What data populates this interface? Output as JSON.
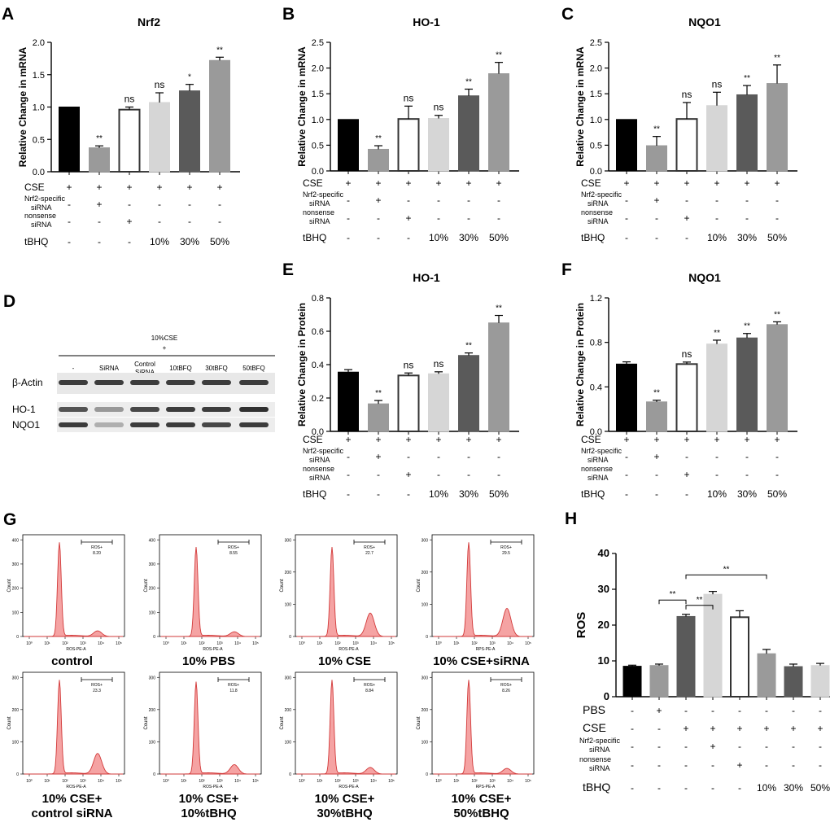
{
  "colors": {
    "black": "#000000",
    "gray_dark": "#5a5a5a",
    "gray_mid": "#9a9a9a",
    "gray_light": "#d6d6d6",
    "white": "#ffffff",
    "flow_fill": "#f5a3a3",
    "flow_line": "#d23a3a"
  },
  "chart_data": [
    {
      "id": "A",
      "panel_label": "A",
      "type": "bar",
      "title": "Nrf2",
      "ylabel": "Relative Change in mRNA",
      "ylim": [
        0,
        2.0
      ],
      "yticks": [
        "0.0",
        "0.5",
        "1.0",
        "1.5",
        "2.0"
      ],
      "ytick_values": [
        0,
        0.5,
        1.0,
        1.5,
        2.0
      ],
      "values": [
        1.0,
        0.37,
        0.96,
        1.07,
        1.25,
        1.72
      ],
      "errors": [
        0,
        0.03,
        0.04,
        0.15,
        0.1,
        0.05
      ],
      "fills": [
        "black",
        "gray_mid",
        "white",
        "gray_light",
        "gray_dark",
        "gray_mid"
      ],
      "significance": [
        "",
        "**",
        "ns",
        "ns",
        "*",
        "**"
      ],
      "treatments": [
        {
          "label": "CSE",
          "values": [
            "+",
            "+",
            "+",
            "+",
            "+",
            "+"
          ]
        },
        {
          "label": "Nrf2-specific",
          "label2": "siRNA",
          "values": [
            "-",
            "+",
            "-",
            "-",
            "-",
            "-"
          ]
        },
        {
          "label": "nonsense",
          "label2": "siRNA",
          "values": [
            "-",
            "-",
            "+",
            "-",
            "-",
            "-"
          ]
        },
        {
          "label": "tBHQ",
          "values": [
            "-",
            "-",
            "-",
            "10%",
            "30%",
            "50%"
          ]
        }
      ]
    },
    {
      "id": "B",
      "panel_label": "B",
      "type": "bar",
      "title": "HO-1",
      "ylabel": "Relative Change in mRNA",
      "ylim": [
        0,
        2.5
      ],
      "yticks": [
        "0.0",
        "0.5",
        "1.0",
        "1.5",
        "2.0",
        "2.5"
      ],
      "ytick_values": [
        0,
        0.5,
        1.0,
        1.5,
        2.0,
        2.5
      ],
      "values": [
        1.0,
        0.42,
        1.01,
        1.02,
        1.46,
        1.89
      ],
      "errors": [
        0,
        0.07,
        0.25,
        0.06,
        0.13,
        0.22
      ],
      "fills": [
        "black",
        "gray_mid",
        "white",
        "gray_light",
        "gray_dark",
        "gray_mid"
      ],
      "significance": [
        "",
        "**",
        "ns",
        "ns",
        "**",
        "**"
      ],
      "treatments": [
        {
          "label": "CSE",
          "values": [
            "+",
            "+",
            "+",
            "+",
            "+",
            "+"
          ]
        },
        {
          "label": "Nrf2-specific",
          "label2": "siRNA",
          "values": [
            "-",
            "+",
            "-",
            "-",
            "-",
            "-"
          ]
        },
        {
          "label": "nonsense",
          "label2": "siRNA",
          "values": [
            "-",
            "-",
            "+",
            "-",
            "-",
            "-"
          ]
        },
        {
          "label": "tBHQ",
          "values": [
            "-",
            "-",
            "-",
            "10%",
            "30%",
            "50%"
          ]
        }
      ]
    },
    {
      "id": "C",
      "panel_label": "C",
      "type": "bar",
      "title": "NQO1",
      "ylabel": "Relative Change in mRNA",
      "ylim": [
        0,
        2.5
      ],
      "yticks": [
        "0.0",
        "0.5",
        "1.0",
        "1.5",
        "2.0",
        "2.5"
      ],
      "ytick_values": [
        0,
        0.5,
        1.0,
        1.5,
        2.0,
        2.5
      ],
      "values": [
        1.0,
        0.49,
        1.01,
        1.27,
        1.48,
        1.7
      ],
      "errors": [
        0,
        0.18,
        0.32,
        0.26,
        0.18,
        0.36
      ],
      "fills": [
        "black",
        "gray_mid",
        "white",
        "gray_light",
        "gray_dark",
        "gray_mid"
      ],
      "significance": [
        "",
        "**",
        "ns",
        "ns",
        "**",
        "**"
      ],
      "treatments": [
        {
          "label": "CSE",
          "values": [
            "+",
            "+",
            "+",
            "+",
            "+",
            "+"
          ]
        },
        {
          "label": "Nrf2-specific",
          "label2": "siRNA",
          "values": [
            "-",
            "+",
            "-",
            "-",
            "-",
            "-"
          ]
        },
        {
          "label": "nonsense",
          "label2": "siRNA",
          "values": [
            "-",
            "-",
            "+",
            "-",
            "-",
            "-"
          ]
        },
        {
          "label": "tBHQ",
          "values": [
            "-",
            "-",
            "-",
            "10%",
            "30%",
            "50%"
          ]
        }
      ]
    },
    {
      "id": "E",
      "panel_label": "E",
      "type": "bar",
      "title": "HO-1",
      "ylabel": "Relative Change in Protein",
      "ylim": [
        0,
        0.8
      ],
      "yticks": [
        "0.0",
        "0.2",
        "0.4",
        "0.6",
        "0.8"
      ],
      "ytick_values": [
        0,
        0.2,
        0.4,
        0.6,
        0.8
      ],
      "values": [
        0.355,
        0.165,
        0.335,
        0.345,
        0.455,
        0.65
      ],
      "errors": [
        0.015,
        0.02,
        0.015,
        0.012,
        0.015,
        0.045
      ],
      "fills": [
        "black",
        "gray_mid",
        "white",
        "gray_light",
        "gray_dark",
        "gray_mid"
      ],
      "significance": [
        "",
        "**",
        "ns",
        "ns",
        "**",
        "**"
      ],
      "treatments": [
        {
          "label": "CSE",
          "values": [
            "+",
            "+",
            "+",
            "+",
            "+",
            "+"
          ]
        },
        {
          "label": "Nrf2-specific",
          "label2": "siRNA",
          "values": [
            "-",
            "+",
            "-",
            "-",
            "-",
            "-"
          ]
        },
        {
          "label": "nonsense",
          "label2": "siRNA",
          "values": [
            "-",
            "-",
            "+",
            "-",
            "-",
            "-"
          ]
        },
        {
          "label": "tBHQ",
          "values": [
            "-",
            "-",
            "-",
            "10%",
            "30%",
            "50%"
          ]
        }
      ]
    },
    {
      "id": "F",
      "panel_label": "F",
      "type": "bar",
      "title": "NQO1",
      "ylabel": "Relative Change in Protein",
      "ylim": [
        0,
        1.2
      ],
      "yticks": [
        "0.0",
        "0.4",
        "0.8",
        "1.2"
      ],
      "ytick_values": [
        0,
        0.4,
        0.8,
        1.2
      ],
      "values": [
        0.605,
        0.265,
        0.605,
        0.785,
        0.84,
        0.96
      ],
      "errors": [
        0.02,
        0.015,
        0.018,
        0.035,
        0.04,
        0.025
      ],
      "fills": [
        "black",
        "gray_mid",
        "white",
        "gray_light",
        "gray_dark",
        "gray_mid"
      ],
      "significance": [
        "",
        "**",
        "ns",
        "**",
        "**",
        "**"
      ],
      "treatments": [
        {
          "label": "CSE",
          "values": [
            "+",
            "+",
            "+",
            "+",
            "+",
            "+"
          ]
        },
        {
          "label": "Nrf2-specific",
          "label2": "siRNA",
          "values": [
            "-",
            "+",
            "-",
            "-",
            "-",
            "-"
          ]
        },
        {
          "label": "nonsense",
          "label2": "siRNA",
          "values": [
            "-",
            "-",
            "+",
            "-",
            "-",
            "-"
          ]
        },
        {
          "label": "tBHQ",
          "values": [
            "-",
            "-",
            "-",
            "10%",
            "30%",
            "50%"
          ]
        }
      ]
    },
    {
      "id": "H",
      "panel_label": "H",
      "type": "bar",
      "title": "",
      "ylabel": "ROS",
      "ylim": [
        0,
        40
      ],
      "yticks": [
        "0",
        "10",
        "20",
        "30",
        "40"
      ],
      "ytick_values": [
        0,
        10,
        20,
        30,
        40
      ],
      "values": [
        8.5,
        8.7,
        22.4,
        28.6,
        22.2,
        12.0,
        8.4,
        8.7
      ],
      "errors": [
        0.3,
        0.4,
        0.6,
        0.8,
        1.8,
        1.2,
        0.7,
        0.6
      ],
      "fills": [
        "black",
        "gray_mid",
        "gray_dark",
        "gray_light",
        "white",
        "gray_mid",
        "gray_dark",
        "gray_light"
      ],
      "significance": [
        "",
        "",
        "",
        "",
        "",
        "",
        "",
        ""
      ],
      "brackets": [
        {
          "from": 2,
          "to": 3,
          "level": 25.5,
          "label": "**"
        },
        {
          "from": 2,
          "to": 5,
          "level": 34.0,
          "label": "**"
        },
        {
          "from": 1,
          "to": 2,
          "level": 27.0,
          "label": "**"
        }
      ],
      "treatments": [
        {
          "label": "PBS",
          "values": [
            "-",
            "+",
            "-",
            "-",
            "-",
            "-",
            "-",
            "-"
          ]
        },
        {
          "label": "CSE",
          "values": [
            "-",
            "-",
            "+",
            "+",
            "+",
            "+",
            "+",
            "+"
          ]
        },
        {
          "label": "Nrf2-specific",
          "label2": "siRNA",
          "values": [
            "-",
            "-",
            "-",
            "+",
            "-",
            "-",
            "-",
            "-"
          ]
        },
        {
          "label": "nonsense",
          "label2": "siRNA",
          "values": [
            "-",
            "-",
            "-",
            "-",
            "+",
            "-",
            "-",
            "-"
          ]
        },
        {
          "label": "tBHQ",
          "values": [
            "-",
            "-",
            "-",
            "-",
            "-",
            "10%",
            "30%",
            "50%"
          ]
        }
      ]
    }
  ],
  "western": {
    "panel_label": "D",
    "header_line1": "10%CSE",
    "header_line2": "+",
    "lanes": [
      "-",
      "SiRNA",
      "Control",
      "10tBFQ",
      "30tBFQ",
      "50tBFQ"
    ],
    "lane2": [
      "",
      "",
      "SiRNA",
      "",
      "",
      ""
    ],
    "rows": [
      "β-Actin",
      "HO-1",
      "NQO1"
    ],
    "intensity": {
      "beta_actin": [
        0.85,
        0.85,
        0.85,
        0.85,
        0.85,
        0.85
      ],
      "ho1": [
        0.75,
        0.45,
        0.8,
        0.85,
        0.85,
        0.9
      ],
      "nqo1": [
        0.85,
        0.35,
        0.85,
        0.85,
        0.8,
        0.85
      ]
    }
  },
  "flow": {
    "panel_label": "G",
    "gate_label": "ROS+",
    "y_axis_label": "Count",
    "x_ticks": [
      "10⁰",
      "10¹",
      "10²",
      "10³",
      "10⁴",
      "10⁵"
    ],
    "plots": [
      {
        "caption": "control",
        "caption2": "",
        "gate_value": "8.20",
        "xlabel": "ROS-PE-A",
        "ymax": 400,
        "yticks": [
          "0",
          "100",
          "200",
          "300",
          "400"
        ],
        "peak": 1.0,
        "second": 0.06
      },
      {
        "caption": "10% PBS",
        "caption2": "",
        "gate_value": "8.55",
        "xlabel": "ROS-PE-A",
        "ymax": 400,
        "yticks": [
          "0",
          "100",
          "200",
          "300",
          "400"
        ],
        "peak": 0.95,
        "second": 0.05
      },
      {
        "caption": "10% CSE",
        "caption2": "",
        "gate_value": "22.7",
        "xlabel": "ROS-PE-A",
        "ymax": 300,
        "yticks": [
          "0",
          "100",
          "200",
          "300"
        ],
        "peak": 0.95,
        "second": 0.25
      },
      {
        "caption": "10% CSE+siRNA",
        "caption2": "",
        "gate_value": "29.5",
        "xlabel": "RPS-PE-A",
        "ymax": 300,
        "yticks": [
          "0",
          "100",
          "200",
          "300"
        ],
        "peak": 1.0,
        "second": 0.3
      },
      {
        "caption": "10% CSE+",
        "caption2": "control siRNA",
        "gate_value": "23.3",
        "xlabel": "ROS-PE-A",
        "ymax": 300,
        "yticks": [
          "0",
          "100",
          "200",
          "300"
        ],
        "peak": 1.0,
        "second": 0.22
      },
      {
        "caption": "10% CSE+",
        "caption2": "10%tBHQ",
        "gate_value": "11.8",
        "xlabel": "ROS-PE-A",
        "ymax": 300,
        "yticks": [
          "0",
          "100",
          "200",
          "300"
        ],
        "peak": 0.98,
        "second": 0.1
      },
      {
        "caption": "10% CSE+",
        "caption2": "30%tBHQ",
        "gate_value": "8.84",
        "xlabel": "ROS-PE-A",
        "ymax": 300,
        "yticks": [
          "0",
          "100",
          "200",
          "300"
        ],
        "peak": 1.0,
        "second": 0.07
      },
      {
        "caption": "10% CSE+",
        "caption2": "50%tBHQ",
        "gate_value": "8.26",
        "xlabel": "RPS-PE-A",
        "ymax": 300,
        "yticks": [
          "0",
          "100",
          "200",
          "300"
        ],
        "peak": 1.0,
        "second": 0.06
      }
    ]
  }
}
